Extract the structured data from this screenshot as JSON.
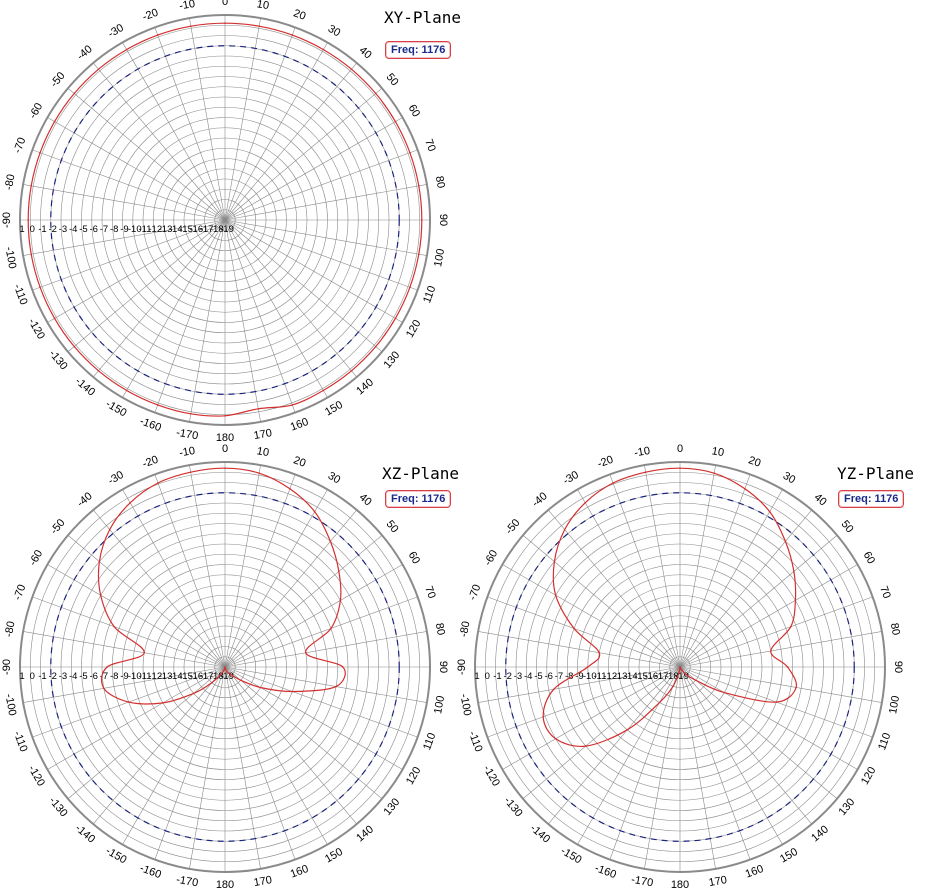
{
  "colors": {
    "grid": "#8a8a8a",
    "outer_ring": "#555555",
    "pattern": "#d32f2f",
    "reference": "#1a237e",
    "badge_border": "#d84048",
    "badge_text": "#1a2a8c"
  },
  "chart_data": [
    {
      "type": "polar",
      "title": "XY-Plane",
      "badge": "Freq: 1176",
      "radial_tick_labels": [
        "1",
        "0",
        "-1",
        "-2",
        "-3",
        "-4",
        "-5",
        "-6",
        "-7",
        "-8",
        "-9",
        "-10",
        "-11",
        "-12",
        "-13",
        "-14",
        "-15",
        "-16",
        "-17",
        "-18",
        "-19"
      ],
      "angle_tick_labels": [
        "0",
        "10",
        "20",
        "30",
        "40",
        "50",
        "60",
        "70",
        "80",
        "90",
        "100",
        "110",
        "120",
        "130",
        "140",
        "150",
        "160",
        "170",
        "180",
        "-170",
        "-160",
        "-150",
        "-140",
        "-130",
        "-120",
        "-110",
        "-100",
        "-90",
        "-80",
        "-70",
        "-60",
        "-50",
        "-40",
        "-30",
        "-20",
        "-10"
      ],
      "rlim": [
        -19,
        1
      ],
      "reference_level": -2,
      "series": [
        {
          "angles": [
            0,
            10,
            20,
            30,
            40,
            50,
            60,
            70,
            80,
            90,
            100,
            110,
            120,
            130,
            140,
            150,
            160,
            170,
            180,
            -170,
            -160,
            -150,
            -140,
            -130,
            -120,
            -110,
            -100,
            -90,
            -80,
            -70,
            -60,
            -50,
            -40,
            -30,
            -20,
            -10
          ],
          "values": [
            0.2,
            0.2,
            0.2,
            0.2,
            0.2,
            0.2,
            0.2,
            0.2,
            0.2,
            0.2,
            0.2,
            0.2,
            0.2,
            0.2,
            0.2,
            0.2,
            0.2,
            -0.3,
            0.1,
            0.2,
            0.2,
            0.2,
            0.2,
            0.2,
            0.2,
            0.2,
            0.2,
            0.2,
            0.2,
            0.2,
            0.2,
            0.2,
            0.2,
            0.2,
            0.2,
            0.2
          ]
        }
      ]
    },
    {
      "type": "polar",
      "title": "XZ-Plane",
      "badge": "Freq: 1176",
      "radial_tick_labels": [
        "1",
        "0",
        "-1",
        "-2",
        "-3",
        "-4",
        "-5",
        "-6",
        "-7",
        "-8",
        "-9",
        "-10",
        "-11",
        "-12",
        "-13",
        "-14",
        "-15",
        "-16",
        "-17",
        "-18",
        "-19"
      ],
      "angle_tick_labels": [
        "0",
        "10",
        "20",
        "30",
        "40",
        "50",
        "60",
        "70",
        "80",
        "90",
        "100",
        "110",
        "120",
        "130",
        "140",
        "150",
        "160",
        "170",
        "180",
        "-170",
        "-160",
        "-150",
        "-140",
        "-130",
        "-120",
        "-110",
        "-100",
        "-90",
        "-80",
        "-70",
        "-60",
        "-50",
        "-40",
        "-30",
        "-20",
        "-10"
      ],
      "rlim": [
        -19,
        1
      ],
      "reference_level": -2,
      "series": [
        {
          "angles": [
            0,
            10,
            20,
            30,
            40,
            50,
            60,
            70,
            80,
            90,
            100,
            110,
            120,
            130,
            140,
            150,
            160,
            170,
            180,
            -170,
            -160,
            -150,
            -140,
            -130,
            -120,
            -110,
            -100,
            -90,
            -80,
            -70,
            -60,
            -50,
            -40,
            -30,
            -20,
            -10
          ],
          "values": [
            0.4,
            0.2,
            -0.5,
            -1.5,
            -3,
            -4.5,
            -6,
            -8,
            -11,
            -7.5,
            -8,
            -12,
            -15,
            -17,
            -18,
            -18.3,
            -18.6,
            -18.8,
            -19,
            -18.8,
            -18.6,
            -18.2,
            -17,
            -15,
            -12,
            -9,
            -7,
            -7.5,
            -11,
            -7.5,
            -5,
            -3,
            -1.5,
            -0.5,
            0.1,
            0.3
          ]
        }
      ]
    },
    {
      "type": "polar",
      "title": "YZ-Plane",
      "badge": "Freq: 1176",
      "radial_tick_labels": [
        "1",
        "0",
        "-1",
        "-2",
        "-3",
        "-4",
        "-5",
        "-6",
        "-7",
        "-8",
        "-9",
        "-10",
        "-11",
        "-12",
        "-13",
        "-14",
        "-15",
        "-16",
        "-17",
        "-18",
        "-19"
      ],
      "angle_tick_labels": [
        "0",
        "10",
        "20",
        "30",
        "40",
        "50",
        "60",
        "70",
        "80",
        "90",
        "100",
        "110",
        "120",
        "130",
        "140",
        "150",
        "160",
        "170",
        "180",
        "-170",
        "-160",
        "-150",
        "-140",
        "-130",
        "-120",
        "-110",
        "-100",
        "-90",
        "-80",
        "-70",
        "-60",
        "-50",
        "-40",
        "-30",
        "-20",
        "-10"
      ],
      "rlim": [
        -19,
        1
      ],
      "reference_level": -2,
      "series": [
        {
          "angles": [
            0,
            10,
            20,
            30,
            40,
            50,
            60,
            70,
            80,
            90,
            100,
            110,
            120,
            130,
            140,
            150,
            160,
            170,
            180,
            -170,
            -160,
            -150,
            -140,
            -130,
            -120,
            -110,
            -100,
            -90,
            -80,
            -70,
            -60,
            -50,
            -40,
            -30,
            -20,
            -10
          ],
          "values": [
            0.4,
            0.2,
            -0.5,
            -1.5,
            -3,
            -4.5,
            -6,
            -7.5,
            -10,
            -8.5,
            -7.5,
            -9,
            -14,
            -17,
            -18,
            -18.6,
            -18.8,
            -18.9,
            -19,
            -18.5,
            -17,
            -15,
            -11,
            -7,
            -5,
            -4.8,
            -6.5,
            -10,
            -11,
            -8,
            -5,
            -3,
            -1.5,
            -0.5,
            0.1,
            0.3
          ]
        }
      ]
    }
  ]
}
